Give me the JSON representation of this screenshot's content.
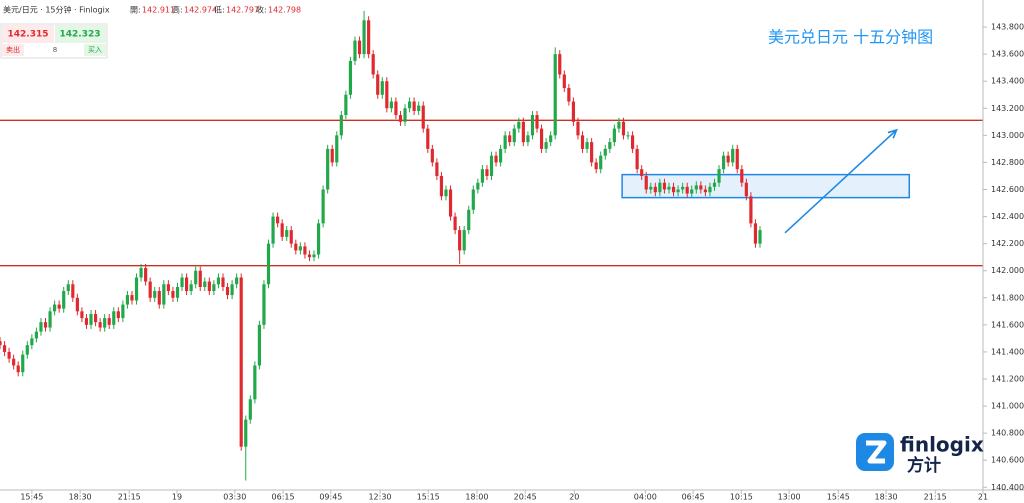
{
  "header": {
    "symbol": "美元/日元 · 15分钟 · Finlogix",
    "ohlc": [
      {
        "label": "開:",
        "value": "142.911"
      },
      {
        "label": "高:",
        "value": "142.974"
      },
      {
        "label": "低:",
        "value": "142.797"
      },
      {
        "label": "收:",
        "value": "142.798"
      }
    ]
  },
  "quote": {
    "sell": "142.315",
    "buy": "142.323",
    "sell_label": "卖出",
    "spread": "8",
    "buy_label": "买入"
  },
  "logo": {
    "brand": "finlogix",
    "cn": "方计"
  },
  "chart_data": {
    "type": "candlestick",
    "title": "美元兑日元 十五分钟图",
    "up_color": "#21a84a",
    "down_color": "#e0292f",
    "level_color": "#c8341f",
    "zone_color": "#1e88e5",
    "xlim": [
      0,
      216
    ],
    "ylim": [
      140.38,
      144.0
    ],
    "xticks": [
      {
        "value": 7,
        "label": "15:45"
      },
      {
        "value": 17.6,
        "label": "18:30"
      },
      {
        "value": 28.4,
        "label": "21:15"
      },
      {
        "value": 38.9,
        "label": "19"
      },
      {
        "value": 51.6,
        "label": "03:30"
      },
      {
        "value": 62.2,
        "label": "06:15"
      },
      {
        "value": 72.7,
        "label": "09:45"
      },
      {
        "value": 83.5,
        "label": "12:30"
      },
      {
        "value": 94.1,
        "label": "15:15"
      },
      {
        "value": 104.8,
        "label": "18:00"
      },
      {
        "value": 115.4,
        "label": "20:45"
      },
      {
        "value": 126.2,
        "label": "20"
      },
      {
        "value": 141.8,
        "label": "04:00"
      },
      {
        "value": 152.3,
        "label": "06:45"
      },
      {
        "value": 162.9,
        "label": "10:15"
      },
      {
        "value": 173.4,
        "label": "13:00"
      },
      {
        "value": 184.2,
        "label": "15:45"
      },
      {
        "value": 194.7,
        "label": "18:30"
      },
      {
        "value": 205.5,
        "label": "21:15"
      },
      {
        "value": 216,
        "label": "21"
      }
    ],
    "yticks": [
      {
        "value": 140.4,
        "label": "140.400"
      },
      {
        "value": 140.6,
        "label": "140.600"
      },
      {
        "value": 140.8,
        "label": "140.800"
      },
      {
        "value": 141.0,
        "label": "141.000"
      },
      {
        "value": 141.2,
        "label": "141.200"
      },
      {
        "value": 141.4,
        "label": "141.400"
      },
      {
        "value": 141.6,
        "label": "141.600"
      },
      {
        "value": 141.8,
        "label": "141.800"
      },
      {
        "value": 142.0,
        "label": "142.000"
      },
      {
        "value": 142.2,
        "label": "142.200"
      },
      {
        "value": 142.4,
        "label": "142.400"
      },
      {
        "value": 142.6,
        "label": "142.600"
      },
      {
        "value": 142.8,
        "label": "142.800"
      },
      {
        "value": 143.0,
        "label": "143.000"
      },
      {
        "value": 143.2,
        "label": "143.200"
      },
      {
        "value": 143.4,
        "label": "143.400"
      },
      {
        "value": 143.6,
        "label": "143.600"
      },
      {
        "value": 143.8,
        "label": "143.800"
      }
    ],
    "levels": [
      143.111,
      142.037
    ],
    "zone": {
      "x": [
        136.7,
        199.8
      ],
      "y": [
        142.54,
        142.71
      ]
    },
    "arrow": {
      "x": [
        172.5,
        197
      ],
      "y": [
        142.28,
        143.04
      ]
    },
    "candles": [
      [
        141.48,
        141.51,
        141.42,
        141.45
      ],
      [
        141.45,
        141.48,
        141.37,
        141.4
      ],
      [
        141.4,
        141.43,
        141.32,
        141.35
      ],
      [
        141.35,
        141.38,
        141.27,
        141.3
      ],
      [
        141.3,
        141.33,
        141.22,
        141.25
      ],
      [
        141.25,
        141.41,
        141.22,
        141.38
      ],
      [
        141.38,
        141.48,
        141.35,
        141.45
      ],
      [
        141.45,
        141.53,
        141.42,
        141.5
      ],
      [
        141.5,
        141.58,
        141.47,
        141.55
      ],
      [
        141.55,
        141.65,
        141.52,
        141.62
      ],
      [
        141.62,
        141.65,
        141.55,
        141.58
      ],
      [
        141.58,
        141.73,
        141.55,
        141.7
      ],
      [
        141.7,
        141.78,
        141.67,
        141.75
      ],
      [
        141.75,
        141.78,
        141.69,
        141.72
      ],
      [
        141.72,
        141.88,
        141.69,
        141.85
      ],
      [
        141.85,
        141.93,
        141.82,
        141.9
      ],
      [
        141.9,
        141.93,
        141.77,
        141.8
      ],
      [
        141.8,
        141.83,
        141.67,
        141.7
      ],
      [
        141.7,
        141.73,
        141.62,
        141.65
      ],
      [
        141.65,
        141.68,
        141.57,
        141.6
      ],
      [
        141.6,
        141.71,
        141.57,
        141.68
      ],
      [
        141.68,
        141.71,
        141.59,
        141.62
      ],
      [
        141.62,
        141.65,
        141.55,
        141.58
      ],
      [
        141.58,
        141.68,
        141.55,
        141.65
      ],
      [
        141.65,
        141.68,
        141.57,
        141.6
      ],
      [
        141.6,
        141.73,
        141.57,
        141.7
      ],
      [
        141.7,
        141.73,
        141.62,
        141.65
      ],
      [
        141.65,
        141.78,
        141.62,
        141.75
      ],
      [
        141.75,
        141.85,
        141.72,
        141.82
      ],
      [
        141.82,
        141.85,
        141.75,
        141.78
      ],
      [
        141.78,
        141.98,
        141.75,
        141.95
      ],
      [
        141.95,
        142.05,
        141.92,
        142.02
      ],
      [
        142.02,
        142.05,
        141.89,
        141.92
      ],
      [
        141.92,
        141.95,
        141.77,
        141.8
      ],
      [
        141.8,
        141.88,
        141.77,
        141.85
      ],
      [
        141.85,
        141.88,
        141.72,
        141.75
      ],
      [
        141.75,
        141.93,
        141.72,
        141.9
      ],
      [
        141.9,
        141.93,
        141.82,
        141.85
      ],
      [
        141.85,
        141.88,
        141.77,
        141.8
      ],
      [
        141.8,
        141.91,
        141.77,
        141.88
      ],
      [
        141.88,
        141.98,
        141.85,
        141.95
      ],
      [
        141.95,
        141.98,
        141.82,
        141.85
      ],
      [
        141.85,
        141.93,
        141.82,
        141.9
      ],
      [
        141.9,
        142.03,
        141.87,
        142.0
      ],
      [
        142.0,
        142.03,
        141.85,
        141.88
      ],
      [
        141.88,
        141.95,
        141.85,
        141.92
      ],
      [
        141.92,
        141.95,
        141.82,
        141.85
      ],
      [
        141.85,
        141.93,
        141.82,
        141.9
      ],
      [
        141.9,
        141.98,
        141.87,
        141.95
      ],
      [
        141.95,
        141.98,
        141.85,
        141.88
      ],
      [
        141.88,
        141.91,
        141.79,
        141.82
      ],
      [
        141.82,
        141.93,
        141.79,
        141.9
      ],
      [
        141.9,
        141.98,
        141.87,
        141.95
      ],
      [
        141.95,
        141.98,
        140.67,
        140.7
      ],
      [
        140.7,
        140.93,
        140.45,
        140.9
      ],
      [
        140.9,
        141.08,
        140.87,
        141.05
      ],
      [
        141.05,
        141.33,
        141.02,
        141.3
      ],
      [
        141.3,
        141.63,
        141.27,
        141.6
      ],
      [
        141.6,
        141.93,
        141.57,
        141.9
      ],
      [
        141.9,
        142.23,
        141.87,
        142.2
      ],
      [
        142.2,
        142.43,
        142.17,
        142.4
      ],
      [
        142.4,
        142.43,
        142.32,
        142.35
      ],
      [
        142.35,
        142.38,
        142.22,
        142.25
      ],
      [
        142.25,
        142.33,
        142.22,
        142.3
      ],
      [
        142.3,
        142.33,
        142.17,
        142.2
      ],
      [
        142.2,
        142.23,
        142.12,
        142.15
      ],
      [
        142.15,
        142.21,
        142.12,
        142.18
      ],
      [
        142.18,
        142.21,
        142.09,
        142.12
      ],
      [
        142.12,
        142.15,
        142.07,
        142.1
      ],
      [
        142.1,
        142.15,
        142.07,
        142.12
      ],
      [
        142.12,
        142.38,
        142.09,
        142.35
      ],
      [
        142.35,
        142.63,
        142.32,
        142.6
      ],
      [
        142.6,
        142.93,
        142.57,
        142.9
      ],
      [
        142.9,
        142.93,
        142.77,
        142.8
      ],
      [
        142.8,
        143.03,
        142.77,
        143.0
      ],
      [
        143.0,
        143.18,
        142.97,
        143.15
      ],
      [
        143.15,
        143.33,
        143.12,
        143.3
      ],
      [
        143.3,
        143.58,
        143.27,
        143.55
      ],
      [
        143.55,
        143.73,
        143.52,
        143.7
      ],
      [
        143.7,
        143.73,
        143.57,
        143.6
      ],
      [
        143.6,
        143.92,
        143.57,
        143.85
      ],
      [
        143.85,
        143.88,
        143.57,
        143.6
      ],
      [
        143.6,
        143.63,
        143.42,
        143.45
      ],
      [
        143.45,
        143.48,
        143.27,
        143.3
      ],
      [
        143.3,
        143.43,
        143.27,
        143.4
      ],
      [
        143.4,
        143.43,
        143.17,
        143.2
      ],
      [
        143.2,
        143.28,
        143.17,
        143.25
      ],
      [
        143.25,
        143.28,
        143.12,
        143.15
      ],
      [
        143.15,
        143.18,
        143.07,
        143.1
      ],
      [
        143.1,
        143.23,
        143.07,
        143.2
      ],
      [
        143.2,
        143.28,
        143.17,
        143.25
      ],
      [
        143.25,
        143.28,
        143.15,
        143.18
      ],
      [
        143.18,
        143.25,
        143.15,
        143.22
      ],
      [
        143.22,
        143.25,
        143.02,
        143.05
      ],
      [
        143.05,
        143.08,
        142.87,
        142.9
      ],
      [
        142.9,
        142.93,
        142.77,
        142.8
      ],
      [
        142.8,
        142.83,
        142.67,
        142.7
      ],
      [
        142.7,
        142.73,
        142.52,
        142.55
      ],
      [
        142.55,
        142.63,
        142.52,
        142.6
      ],
      [
        142.6,
        142.63,
        142.37,
        142.4
      ],
      [
        142.4,
        142.43,
        142.27,
        142.3
      ],
      [
        142.3,
        142.33,
        142.05,
        142.15
      ],
      [
        142.15,
        142.33,
        142.12,
        142.3
      ],
      [
        142.3,
        142.48,
        142.27,
        142.45
      ],
      [
        142.45,
        142.63,
        142.42,
        142.6
      ],
      [
        142.6,
        142.68,
        142.57,
        142.65
      ],
      [
        142.65,
        142.78,
        142.62,
        142.75
      ],
      [
        142.75,
        142.78,
        142.67,
        142.7
      ],
      [
        142.7,
        142.88,
        142.67,
        142.85
      ],
      [
        142.85,
        142.88,
        142.77,
        142.8
      ],
      [
        142.8,
        142.93,
        142.77,
        142.9
      ],
      [
        142.9,
        143.03,
        142.87,
        143.0
      ],
      [
        143.0,
        143.03,
        142.92,
        142.95
      ],
      [
        142.95,
        143.08,
        142.92,
        143.05
      ],
      [
        143.05,
        143.13,
        143.02,
        143.1
      ],
      [
        143.1,
        143.13,
        142.92,
        142.95
      ],
      [
        142.95,
        143.03,
        142.92,
        143.0
      ],
      [
        143.0,
        143.18,
        142.97,
        143.15
      ],
      [
        143.15,
        143.18,
        143.02,
        143.05
      ],
      [
        143.05,
        143.08,
        142.87,
        142.9
      ],
      [
        142.9,
        142.98,
        142.87,
        142.95
      ],
      [
        142.95,
        143.03,
        142.92,
        143.0
      ],
      [
        143.0,
        143.65,
        142.97,
        143.6
      ],
      [
        143.6,
        143.63,
        143.42,
        143.45
      ],
      [
        143.45,
        143.48,
        143.32,
        143.35
      ],
      [
        143.35,
        143.38,
        143.22,
        143.25
      ],
      [
        143.25,
        143.28,
        143.07,
        143.1
      ],
      [
        143.1,
        143.13,
        142.97,
        143.0
      ],
      [
        143.0,
        143.03,
        142.87,
        142.9
      ],
      [
        142.9,
        142.98,
        142.87,
        142.95
      ],
      [
        142.95,
        142.98,
        142.77,
        142.8
      ],
      [
        142.8,
        142.83,
        142.72,
        142.75
      ],
      [
        142.75,
        142.88,
        142.72,
        142.85
      ],
      [
        142.85,
        142.93,
        142.82,
        142.9
      ],
      [
        142.9,
        142.98,
        142.87,
        142.95
      ],
      [
        142.95,
        143.08,
        142.92,
        143.05
      ],
      [
        143.05,
        143.13,
        143.02,
        143.1
      ],
      [
        143.1,
        143.13,
        142.97,
        143.0
      ],
      [
        143.0,
        143.03,
        142.97,
        143.0
      ],
      [
        143.0,
        143.03,
        142.87,
        142.9
      ],
      [
        142.9,
        142.93,
        142.72,
        142.75
      ],
      [
        142.75,
        142.78,
        142.67,
        142.7
      ],
      [
        142.7,
        142.73,
        142.57,
        142.6
      ],
      [
        142.6,
        142.65,
        142.57,
        142.62
      ],
      [
        142.62,
        142.65,
        142.55,
        142.58
      ],
      [
        142.58,
        142.68,
        142.55,
        142.65
      ],
      [
        142.65,
        142.68,
        142.57,
        142.6
      ],
      [
        142.6,
        142.65,
        142.57,
        142.62
      ],
      [
        142.62,
        142.65,
        142.55,
        142.58
      ],
      [
        142.58,
        142.63,
        142.55,
        142.6
      ],
      [
        142.6,
        142.65,
        142.57,
        142.62
      ],
      [
        142.62,
        142.65,
        142.54,
        142.57
      ],
      [
        142.57,
        142.63,
        142.54,
        142.6
      ],
      [
        142.6,
        142.66,
        142.57,
        142.63
      ],
      [
        142.63,
        142.66,
        142.57,
        142.6
      ],
      [
        142.6,
        142.63,
        142.55,
        142.58
      ],
      [
        142.58,
        142.65,
        142.55,
        142.62
      ],
      [
        142.62,
        142.68,
        142.59,
        142.65
      ],
      [
        142.65,
        142.78,
        142.62,
        142.75
      ],
      [
        142.75,
        142.88,
        142.72,
        142.85
      ],
      [
        142.85,
        142.88,
        142.77,
        142.8
      ],
      [
        142.8,
        142.93,
        142.77,
        142.9
      ],
      [
        142.9,
        142.93,
        142.72,
        142.75
      ],
      [
        142.75,
        142.78,
        142.62,
        142.65
      ],
      [
        142.65,
        142.68,
        142.52,
        142.55
      ],
      [
        142.55,
        142.58,
        142.32,
        142.35
      ],
      [
        142.35,
        142.38,
        142.17,
        142.2
      ],
      [
        142.2,
        142.33,
        142.17,
        142.3
      ]
    ]
  }
}
